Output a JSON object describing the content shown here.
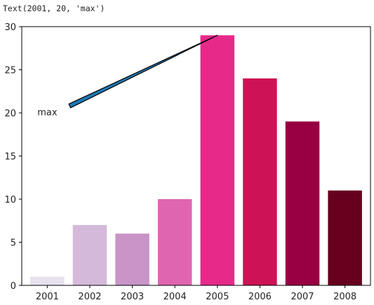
{
  "output_repr": "Text(2001, 20, 'max')",
  "chart_data": {
    "type": "bar",
    "categories": [
      "2001",
      "2002",
      "2003",
      "2004",
      "2005",
      "2006",
      "2007",
      "2008"
    ],
    "values": [
      1,
      7,
      6,
      10,
      29,
      24,
      19,
      11
    ],
    "colors": [
      "#e7e1ef",
      "#d4b9da",
      "#c994c7",
      "#df65b0",
      "#e7298a",
      "#ce1256",
      "#980043",
      "#67001f"
    ],
    "title": "",
    "xlabel": "",
    "ylabel": "",
    "ylim": [
      0,
      30
    ],
    "yticks": [
      0,
      5,
      10,
      15,
      20,
      25,
      30
    ],
    "grid": false,
    "annotation": {
      "text": "max",
      "xy": [
        "2005",
        29
      ],
      "xytext": [
        "2001",
        20
      ],
      "arrow_color": "#1f77b4"
    }
  }
}
